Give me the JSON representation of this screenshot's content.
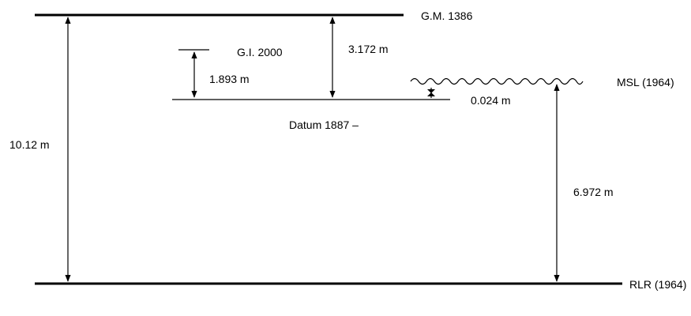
{
  "labels": {
    "gm": "G.M. 1386",
    "gi": "G.I.  2000",
    "datum": "Datum 1887 –",
    "msl": "MSL (1964)",
    "rlr": "RLR (1964)"
  },
  "measurements": {
    "gm_to_rlr": "10.12 m",
    "gi_to_datum": "1.893 m",
    "gm_to_datum": "3.172 m",
    "datum_to_msl": "0.024 m",
    "msl_to_rlr": "6.972 m"
  },
  "colors": {
    "line": "#000000",
    "background": "#ffffff"
  }
}
